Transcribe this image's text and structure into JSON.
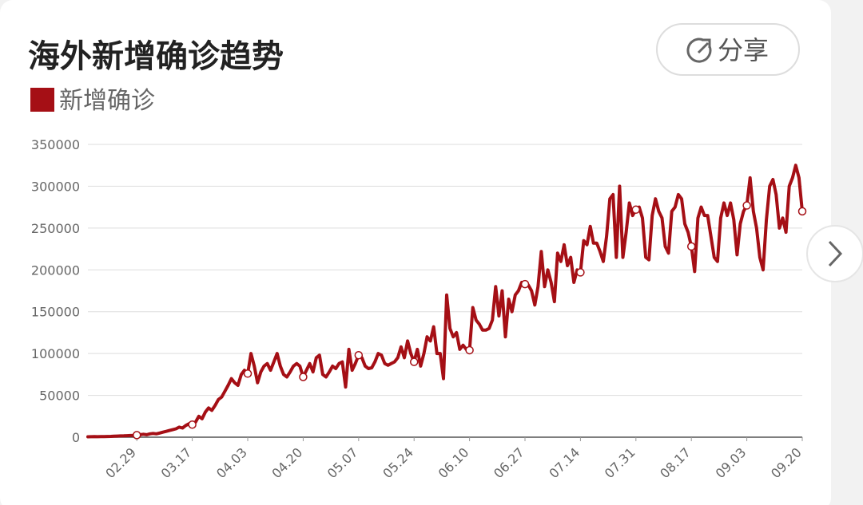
{
  "chart_data": {
    "type": "line",
    "title": "海外新增确诊趋势",
    "share_label": "分享",
    "series": [
      {
        "name": "新增确诊",
        "color": "#a50f15",
        "values": [
          500,
          600,
          700,
          600,
          800,
          700,
          900,
          1000,
          1100,
          1300,
          1500,
          1600,
          1800,
          2000,
          2100,
          2500,
          3000,
          3500,
          3000,
          4000,
          4500,
          4000,
          5000,
          6000,
          7000,
          8000,
          9000,
          10000,
          12000,
          11000,
          14000,
          16000,
          15000,
          18000,
          25000,
          22000,
          30000,
          35000,
          32000,
          38000,
          45000,
          48000,
          55000,
          62000,
          70000,
          65000,
          62000,
          75000,
          80000,
          76000,
          100000,
          85000,
          65000,
          78000,
          85000,
          88000,
          80000,
          90000,
          100000,
          85000,
          75000,
          72000,
          78000,
          85000,
          88000,
          85000,
          72000,
          80000,
          88000,
          78000,
          95000,
          98000,
          75000,
          72000,
          78000,
          85000,
          82000,
          88000,
          90000,
          60000,
          105000,
          80000,
          88000,
          98000,
          95000,
          85000,
          82000,
          83000,
          90000,
          100000,
          98000,
          88000,
          86000,
          88000,
          90000,
          95000,
          108000,
          95000,
          115000,
          100000,
          90000,
          105000,
          85000,
          100000,
          120000,
          115000,
          132000,
          100000,
          100000,
          70000,
          170000,
          130000,
          120000,
          125000,
          105000,
          110000,
          105000,
          104000,
          155000,
          140000,
          135000,
          128000,
          128000,
          130000,
          140000,
          180000,
          145000,
          175000,
          120000,
          165000,
          150000,
          170000,
          175000,
          185000,
          183000,
          182000,
          175000,
          158000,
          180000,
          222000,
          180000,
          200000,
          185000,
          162000,
          220000,
          210000,
          230000,
          205000,
          215000,
          185000,
          200000,
          197000,
          235000,
          230000,
          252000,
          232000,
          232000,
          222000,
          210000,
          240000,
          285000,
          290000,
          215000,
          300000,
          215000,
          245000,
          280000,
          265000,
          272000,
          275000,
          262000,
          215000,
          212000,
          265000,
          285000,
          270000,
          262000,
          228000,
          220000,
          270000,
          275000,
          290000,
          285000,
          255000,
          245000,
          228000,
          198000,
          262000,
          275000,
          265000,
          265000,
          240000,
          215000,
          210000,
          262000,
          280000,
          265000,
          280000,
          260000,
          218000,
          255000,
          270000,
          277000,
          310000,
          270000,
          250000,
          215000,
          200000,
          260000,
          300000,
          308000,
          290000,
          250000,
          262000,
          245000,
          300000,
          310000,
          325000,
          310000,
          270000
        ]
      }
    ],
    "categories": [
      null,
      null,
      null,
      null,
      null,
      null,
      null,
      null,
      null,
      null,
      null,
      null,
      null,
      null,
      null,
      "02.29",
      null,
      null,
      null,
      null,
      null,
      null,
      null,
      null,
      null,
      null,
      null,
      null,
      null,
      null,
      null,
      null,
      "03.17",
      null,
      null,
      null,
      null,
      null,
      null,
      null,
      null,
      null,
      null,
      null,
      null,
      null,
      null,
      null,
      null,
      "04.03",
      null,
      null,
      null,
      null,
      null,
      null,
      null,
      null,
      null,
      null,
      null,
      null,
      null,
      null,
      null,
      null,
      "04.20",
      null,
      null,
      null,
      null,
      null,
      null,
      null,
      null,
      null,
      null,
      null,
      null,
      null,
      null,
      null,
      null,
      "05.07",
      null,
      null,
      null,
      null,
      null,
      null,
      null,
      null,
      null,
      null,
      null,
      null,
      null,
      null,
      null,
      null,
      "05.24",
      null,
      null,
      null,
      null,
      null,
      null,
      null,
      null,
      null,
      null,
      null,
      null,
      null,
      null,
      null,
      null,
      "06.10",
      null,
      null,
      null,
      null,
      null,
      null,
      null,
      null,
      null,
      null,
      null,
      null,
      null,
      null,
      null,
      null,
      "06.27",
      null,
      null,
      null,
      null,
      null,
      null,
      null,
      null,
      null,
      null,
      null,
      null,
      null,
      null,
      null,
      null,
      "07.14",
      null,
      null,
      null,
      null,
      null,
      null,
      null,
      null,
      null,
      null,
      null,
      null,
      null,
      null,
      null,
      null,
      "07.31",
      null,
      null,
      null,
      null,
      null,
      null,
      null,
      null,
      null,
      null,
      null,
      null,
      null,
      null,
      null,
      null,
      "08.17",
      null,
      null,
      null,
      null,
      null,
      null,
      null,
      null,
      null,
      null,
      null,
      null,
      null,
      null,
      null,
      null,
      "09.03",
      null,
      null,
      null,
      null,
      null,
      null,
      null,
      null,
      null,
      null,
      null,
      null,
      null,
      null,
      null,
      null,
      "09.20"
    ],
    "ylim": [
      0,
      350000
    ],
    "yticks": [
      0,
      50000,
      100000,
      150000,
      200000,
      250000,
      300000,
      350000
    ],
    "grid": true
  }
}
